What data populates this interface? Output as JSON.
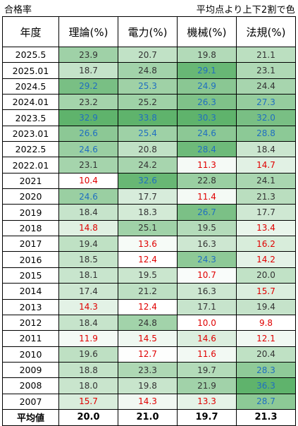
{
  "header_left": "合格率",
  "header_right": "平均点より上下2割で色",
  "columns": [
    "年度",
    "理論(%)",
    "電力(%)",
    "機械(%)",
    "法規(%)"
  ],
  "rows": [
    {
      "year": "2025.5",
      "vals": [
        "23.9",
        "20.7",
        "19.8",
        "21.1"
      ]
    },
    {
      "year": "2025.01",
      "vals": [
        "18.7",
        "24.8",
        "29.1",
        "23.1"
      ]
    },
    {
      "year": "2024.5",
      "vals": [
        "29.2",
        "25.3",
        "24.9",
        "24.4"
      ]
    },
    {
      "year": "2024.01",
      "vals": [
        "23.2",
        "25.2",
        "26.3",
        "27.3"
      ]
    },
    {
      "year": "2023.5",
      "vals": [
        "32.9",
        "33.8",
        "30.3",
        "32.0"
      ]
    },
    {
      "year": "2023.01",
      "vals": [
        "26.6",
        "25.4",
        "24.6",
        "28.8"
      ]
    },
    {
      "year": "2022.5",
      "vals": [
        "24.6",
        "20.8",
        "28.4",
        "18.4"
      ]
    },
    {
      "year": "2022.01",
      "vals": [
        "23.1",
        "24.2",
        "11.3",
        "14.7"
      ]
    },
    {
      "year": "2021",
      "vals": [
        "10.4",
        "32.6",
        "22.8",
        "24.1"
      ]
    },
    {
      "year": "2020",
      "vals": [
        "24.6",
        "17.7",
        "11.4",
        "21.3"
      ]
    },
    {
      "year": "2019",
      "vals": [
        "18.4",
        "18.3",
        "26.7",
        "17.7"
      ]
    },
    {
      "year": "2018",
      "vals": [
        "14.8",
        "25.1",
        "19.5",
        "13.4"
      ]
    },
    {
      "year": "2017",
      "vals": [
        "19.4",
        "13.6",
        "16.3",
        "16.2"
      ]
    },
    {
      "year": "2016",
      "vals": [
        "18.5",
        "12.4",
        "24.3",
        "14.2"
      ]
    },
    {
      "year": "2015",
      "vals": [
        "18.1",
        "19.5",
        "10.7",
        "20.0"
      ]
    },
    {
      "year": "2014",
      "vals": [
        "17.4",
        "21.2",
        "16.3",
        "15.7"
      ]
    },
    {
      "year": "2013",
      "vals": [
        "14.3",
        "12.4",
        "17.1",
        "19.4"
      ]
    },
    {
      "year": "2012",
      "vals": [
        "18.4",
        "24.8",
        "10.0",
        "9.8"
      ]
    },
    {
      "year": "2011",
      "vals": [
        "11.9",
        "14.5",
        "14.6",
        "12.1"
      ]
    },
    {
      "year": "2010",
      "vals": [
        "19.6",
        "12.7",
        "11.6",
        "20.4"
      ]
    },
    {
      "year": "2009",
      "vals": [
        "18.8",
        "23.3",
        "19.7",
        "28.3"
      ]
    },
    {
      "year": "2008",
      "vals": [
        "18.0",
        "19.8",
        "21.9",
        "36.3"
      ]
    },
    {
      "year": "2007",
      "vals": [
        "15.7",
        "14.3",
        "13.3",
        "28.7"
      ]
    }
  ],
  "average": {
    "label": "平均値",
    "vals": [
      "20.0",
      "21.0",
      "19.7",
      "21.3"
    ]
  },
  "colors": {
    "high_text": "#1f6fc0",
    "low_text": "#e00000",
    "normal_text": "#333333",
    "fill_low": "#ffffff",
    "fill_high": "#5fb36c"
  }
}
